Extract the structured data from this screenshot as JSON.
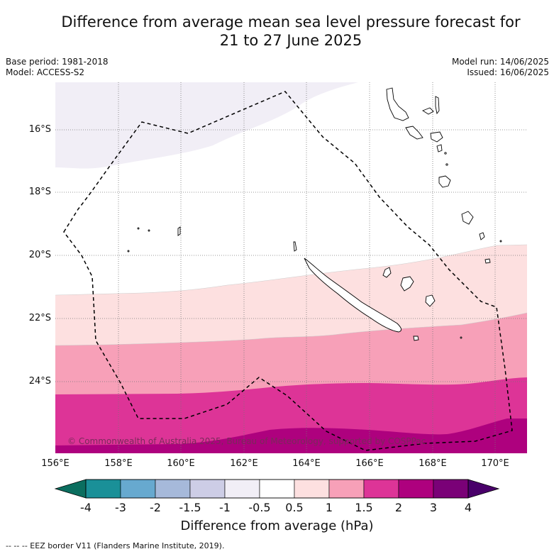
{
  "title_line1": "Difference from average mean sea level pressure forecast for",
  "title_line2": "21 to 27 June 2025",
  "meta": {
    "base_period": "Base period: 1981-2018",
    "model": "Model: ACCESS-S2",
    "model_run": "Model run: 14/06/2025",
    "issued": "Issued: 16/06/2025"
  },
  "copyright": "© Commonwealth of Australia 2025, Bureau of Meteorology, supported by COSPPac",
  "lat_labels": [
    "16°S",
    "18°S",
    "20°S",
    "22°S",
    "24°S"
  ],
  "lon_labels": [
    "156°E",
    "158°E",
    "160°E",
    "162°E",
    "164°E",
    "166°E",
    "168°E",
    "170°E"
  ],
  "colorbar": {
    "title": "Difference from average (hPa)",
    "ticks": [
      "-4",
      "-3",
      "-2",
      "-1.5",
      "-1",
      "-0.5",
      "0.5",
      "1",
      "1.5",
      "2",
      "3",
      "4"
    ],
    "colors": [
      "#1a9098",
      "#67a9cf",
      "#a6b9da",
      "#cdcde6",
      "#f1eef6",
      "#ffffff",
      "#fde0e0",
      "#f7a0b8",
      "#dd3497",
      "#ae017e",
      "#7a0177"
    ],
    "under_color": "#0b6e5f",
    "over_color": "#49006a"
  },
  "footer": "--  --  -- EEZ border V11 (Flanders Marine Institute, 2019)."
}
